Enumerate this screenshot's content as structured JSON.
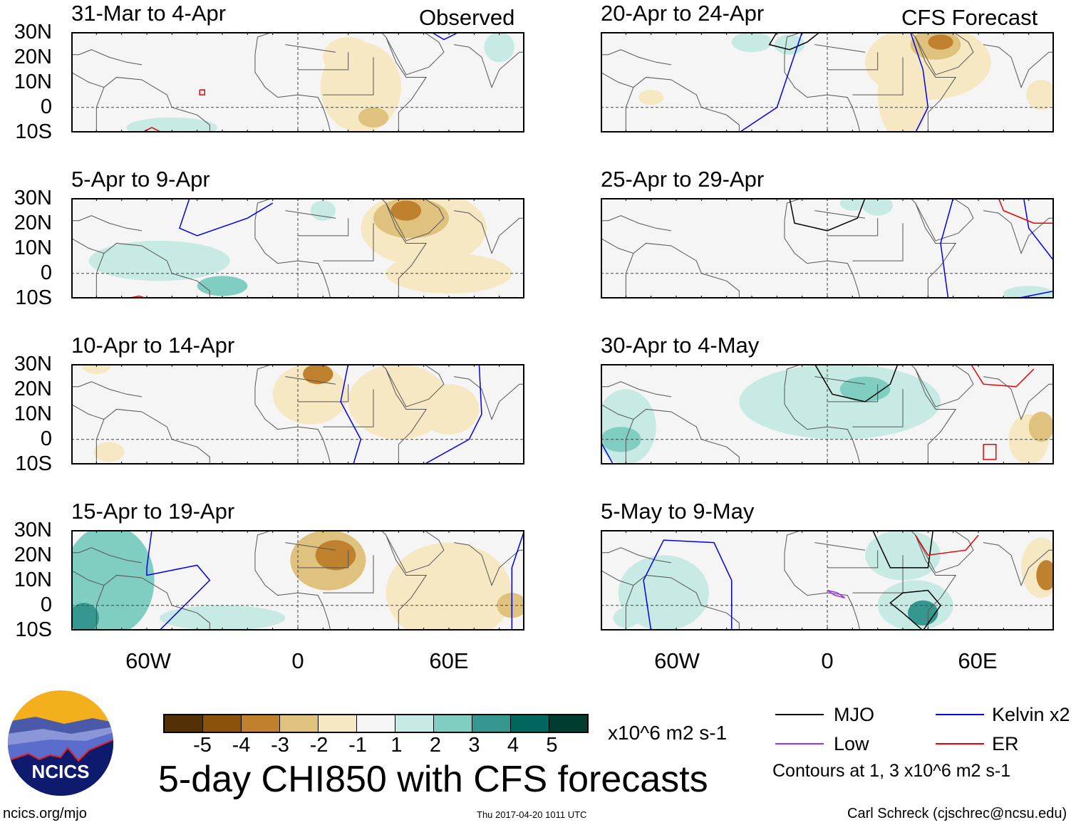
{
  "header": {
    "observed_label": "Observed",
    "forecast_label": "CFS Forecast"
  },
  "lat_labels": [
    "30N",
    "20N",
    "10N",
    "0",
    "10S"
  ],
  "lon_labels": [
    "60W",
    "0",
    "60E"
  ],
  "panels": [
    {
      "title": "31-Mar to 4-Apr",
      "anoms": [
        [
          25,
          8,
          16,
          18,
          -1
        ],
        [
          30,
          -4,
          6,
          4,
          -2
        ],
        [
          20,
          20,
          10,
          8,
          -1
        ],
        [
          -50,
          -8,
          18,
          4,
          1
        ],
        [
          80,
          24,
          6,
          6,
          1
        ]
      ],
      "contours": [
        {
          "type": "er",
          "pts": [
            [
              -39,
              7
            ],
            [
              -37,
              7
            ],
            [
              -37,
              5
            ],
            [
              -39,
              5
            ],
            [
              -39,
              7
            ]
          ]
        },
        {
          "type": "er",
          "pts": [
            [
              -62,
              -10
            ],
            [
              -58,
              -8
            ],
            [
              -54,
              -10
            ]
          ]
        },
        {
          "type": "kelvin",
          "pts": [
            [
              53,
              30
            ],
            [
              58,
              27
            ],
            [
              64,
              30
            ]
          ]
        }
      ]
    },
    {
      "title": "5-Apr to 9-Apr",
      "anoms": [
        [
          50,
          18,
          25,
          15,
          -1
        ],
        [
          45,
          22,
          15,
          8,
          -2
        ],
        [
          43,
          25,
          6,
          4,
          -3
        ],
        [
          -55,
          5,
          28,
          8,
          1
        ],
        [
          -30,
          -5,
          10,
          4,
          2
        ],
        [
          10,
          25,
          5,
          4,
          1
        ],
        [
          60,
          0,
          25,
          8,
          -1
        ]
      ],
      "contours": [
        {
          "type": "kelvin",
          "pts": [
            [
              -43,
              30
            ],
            [
              -47,
              18
            ],
            [
              -40,
              15
            ],
            [
              -20,
              22
            ],
            [
              -10,
              28
            ]
          ]
        },
        {
          "type": "er",
          "pts": [
            [
              -68,
              -10
            ],
            [
              -63,
              -9
            ],
            [
              -60,
              -10
            ]
          ]
        }
      ]
    },
    {
      "title": "10-Apr to 14-Apr",
      "anoms": [
        [
          5,
          18,
          15,
          12,
          -1
        ],
        [
          8,
          26,
          6,
          4,
          -3
        ],
        [
          40,
          15,
          20,
          15,
          -1
        ],
        [
          -80,
          30,
          6,
          4,
          -1
        ],
        [
          60,
          12,
          12,
          10,
          -1
        ],
        [
          -75,
          -5,
          6,
          4,
          -1
        ]
      ],
      "contours": [
        {
          "type": "kelvin",
          "pts": [
            [
              20,
              30
            ],
            [
              17,
              15
            ],
            [
              25,
              0
            ],
            [
              22,
              -10
            ]
          ]
        },
        {
          "type": "kelvin",
          "pts": [
            [
              72,
              30
            ],
            [
              73,
              10
            ],
            [
              68,
              0
            ],
            [
              50,
              -10
            ]
          ]
        }
      ]
    },
    {
      "title": "15-Apr to 19-Apr",
      "anoms": [
        [
          12,
          18,
          15,
          12,
          -2
        ],
        [
          15,
          20,
          8,
          6,
          -3
        ],
        [
          -75,
          10,
          18,
          22,
          2
        ],
        [
          -85,
          -5,
          6,
          6,
          3
        ],
        [
          60,
          5,
          25,
          20,
          -1
        ],
        [
          85,
          0,
          6,
          5,
          -2
        ],
        [
          -30,
          -5,
          25,
          5,
          1
        ]
      ],
      "contours": [
        {
          "type": "kelvin",
          "pts": [
            [
              -58,
              30
            ],
            [
              -60,
              15
            ],
            [
              -60,
              12
            ],
            [
              -40,
              16
            ],
            [
              -35,
              10
            ],
            [
              -45,
              0
            ],
            [
              -55,
              -10
            ]
          ]
        },
        {
          "type": "kelvin",
          "pts": [
            [
              -52,
              30
            ],
            [
              -45,
              31
            ]
          ]
        },
        {
          "type": "kelvin",
          "pts": [
            [
              90,
              30
            ],
            [
              85,
              15
            ],
            [
              85,
              -10
            ]
          ]
        }
      ]
    },
    {
      "title": "20-Apr to 24-Apr",
      "anoms": [
        [
          40,
          18,
          25,
          15,
          -1
        ],
        [
          43,
          25,
          10,
          6,
          -2
        ],
        [
          45,
          26,
          5,
          3,
          -3
        ],
        [
          30,
          5,
          10,
          18,
          -1
        ],
        [
          -30,
          26,
          8,
          4,
          1
        ],
        [
          -15,
          25,
          6,
          4,
          1
        ],
        [
          85,
          5,
          6,
          6,
          -1
        ],
        [
          -70,
          4,
          5,
          3,
          -1
        ]
      ],
      "contours": [
        {
          "type": "mjo",
          "pts": [
            [
              -20,
              30
            ],
            [
              -23,
              25
            ],
            [
              -15,
              23
            ],
            [
              -8,
              26
            ],
            [
              -3,
              30
            ]
          ]
        },
        {
          "type": "kelvin",
          "pts": [
            [
              -35,
              -10
            ],
            [
              -20,
              0
            ],
            [
              -15,
              15
            ],
            [
              -10,
              30
            ]
          ]
        },
        {
          "type": "kelvin",
          "pts": [
            [
              33,
              30
            ],
            [
              38,
              15
            ],
            [
              40,
              0
            ],
            [
              35,
              -10
            ]
          ]
        }
      ]
    },
    {
      "title": "25-Apr to 29-Apr",
      "anoms": [
        [
          20,
          27,
          6,
          4,
          1
        ],
        [
          10,
          28,
          5,
          3,
          1
        ],
        [
          80,
          -8,
          10,
          3,
          1
        ]
      ],
      "contours": [
        {
          "type": "mjo",
          "pts": [
            [
              -15,
              30
            ],
            [
              -13,
              20
            ],
            [
              0,
              17
            ],
            [
              12,
              22
            ],
            [
              15,
              30
            ]
          ]
        },
        {
          "type": "kelvin",
          "pts": [
            [
              50,
              30
            ],
            [
              45,
              12
            ],
            [
              48,
              -10
            ]
          ]
        },
        {
          "type": "kelvin",
          "pts": [
            [
              78,
              30
            ],
            [
              80,
              18
            ],
            [
              90,
              5
            ]
          ]
        },
        {
          "type": "er",
          "pts": [
            [
              68,
              30
            ],
            [
              70,
              25
            ],
            [
              82,
              20
            ],
            [
              90,
              20
            ]
          ]
        },
        {
          "type": "kelvin",
          "pts": [
            [
              75,
              -10
            ],
            [
              90,
              -7
            ]
          ]
        }
      ]
    },
    {
      "title": "30-Apr to 4-May",
      "anoms": [
        [
          5,
          15,
          40,
          15,
          1
        ],
        [
          15,
          20,
          10,
          5,
          2
        ],
        [
          -80,
          5,
          12,
          15,
          1
        ],
        [
          -82,
          0,
          8,
          5,
          2
        ],
        [
          80,
          0,
          8,
          10,
          -1
        ],
        [
          85,
          5,
          5,
          6,
          -2
        ]
      ],
      "contours": [
        {
          "type": "mjo",
          "pts": [
            [
              -5,
              30
            ],
            [
              2,
              18
            ],
            [
              15,
              15
            ],
            [
              25,
              22
            ],
            [
              28,
              30
            ]
          ]
        },
        {
          "type": "er",
          "pts": [
            [
              57,
              30
            ],
            [
              62,
              22
            ],
            [
              75,
              21
            ],
            [
              82,
              28
            ]
          ]
        },
        {
          "type": "er",
          "pts": [
            [
              62,
              -2
            ],
            [
              67,
              -2
            ],
            [
              67,
              -8
            ],
            [
              62,
              -8
            ],
            [
              62,
              -2
            ]
          ]
        },
        {
          "type": "kelvin",
          "pts": [
            [
              -90,
              -1
            ],
            [
              -85,
              -10
            ]
          ]
        }
      ]
    },
    {
      "title": "5-May to 9-May",
      "anoms": [
        [
          30,
          20,
          15,
          10,
          1
        ],
        [
          35,
          0,
          15,
          10,
          1
        ],
        [
          38,
          -3,
          6,
          5,
          3
        ],
        [
          -65,
          5,
          18,
          15,
          1
        ],
        [
          85,
          15,
          8,
          12,
          -1
        ],
        [
          87,
          12,
          4,
          6,
          -3
        ],
        [
          -80,
          -5,
          5,
          4,
          1
        ]
      ],
      "contours": [
        {
          "type": "mjo",
          "pts": [
            [
              18,
              30
            ],
            [
              25,
              15
            ],
            [
              40,
              15
            ],
            [
              42,
              30
            ]
          ]
        },
        {
          "type": "mjo",
          "pts": [
            [
              30,
              -3
            ],
            [
              25,
              1
            ],
            [
              30,
              5
            ],
            [
              40,
              6
            ],
            [
              45,
              0
            ],
            [
              38,
              -10
            ],
            [
              30,
              -3
            ]
          ]
        },
        {
          "type": "er",
          "pts": [
            [
              35,
              28
            ],
            [
              40,
              20
            ],
            [
              55,
              22
            ],
            [
              60,
              28
            ]
          ]
        },
        {
          "type": "low",
          "pts": [
            [
              0,
              6
            ],
            [
              4,
              5
            ],
            [
              7,
              3
            ],
            [
              3,
              4
            ],
            [
              0,
              6
            ]
          ]
        },
        {
          "type": "kelvin",
          "pts": [
            [
              -70,
              -10
            ],
            [
              -73,
              10
            ],
            [
              -65,
              26
            ],
            [
              -45,
              25
            ],
            [
              -38,
              10
            ],
            [
              -38,
              -10
            ]
          ]
        }
      ]
    }
  ],
  "colorbar": {
    "labels": [
      "-5",
      "-4",
      "-3",
      "-2",
      "-1",
      "1",
      "2",
      "3",
      "4",
      "5"
    ],
    "units": "x10^6 m2 s-1",
    "colors": [
      "#543005",
      "#8c510a",
      "#bf812d",
      "#dfc27d",
      "#f6e8c3",
      "#f5f5f5",
      "#c7eae5",
      "#80cdc1",
      "#35978f",
      "#01665e",
      "#003c30"
    ]
  },
  "title": "5-day CHI850 with CFS forecasts",
  "legend": {
    "items": [
      {
        "label": "MJO",
        "color": "#000000"
      },
      {
        "label": "Kelvin x2",
        "color": "#0000ee"
      },
      {
        "label": "Low",
        "color": "#9a30f0"
      },
      {
        "label": "ER",
        "color": "#ee0000"
      }
    ],
    "note": "Contours at 1, 3 x10^6 m2 s-1"
  },
  "logo": {
    "text": "NCICS"
  },
  "footer": {
    "url": "ncics.org/mjo",
    "timestamp": "Thu 2017-04-20 1011 UTC",
    "credit": "Carl Schreck (cjschrec@ncsu.edu)"
  }
}
